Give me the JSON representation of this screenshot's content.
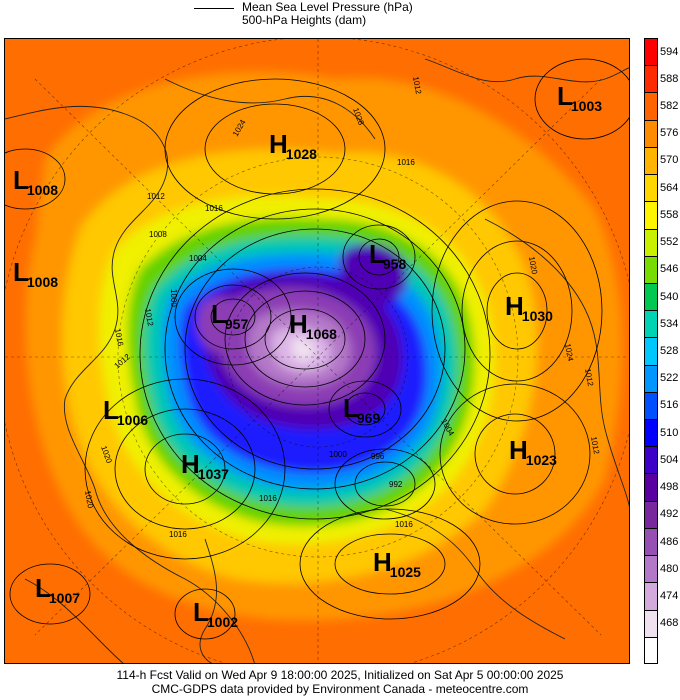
{
  "header": {
    "legend_line_label": "Mean Sea Level Pressure (hPa)",
    "legend_fill_label": "500-hPa Heights (dam)"
  },
  "pressure_systems": [
    {
      "type": "L",
      "value": "1003"
    },
    {
      "type": "H",
      "value": "1028"
    },
    {
      "type": "L",
      "value": "1008"
    },
    {
      "type": "L",
      "value": "1008"
    },
    {
      "type": "L",
      "value": "958"
    },
    {
      "type": "H",
      "value": "1030"
    },
    {
      "type": "L",
      "value": "957"
    },
    {
      "type": "H",
      "value": "1068"
    },
    {
      "type": "L",
      "value": "1006"
    },
    {
      "type": "L",
      "value": "969"
    },
    {
      "type": "H",
      "value": "1037"
    },
    {
      "type": "H",
      "value": "1023"
    },
    {
      "type": "H",
      "value": "1025"
    },
    {
      "type": "L",
      "value": "1007"
    },
    {
      "type": "L",
      "value": "1002"
    }
  ],
  "isobar_labels": [
    "1024",
    "1028",
    "1012",
    "1016",
    "1016",
    "1012",
    "1008",
    "1004",
    "1000",
    "1012",
    "1020",
    "1024",
    "1020",
    "1016",
    "1012",
    "1012",
    "1004",
    "1016",
    "1016",
    "1020",
    "1012",
    "1016",
    "1000",
    "996",
    "992"
  ],
  "colorbar": {
    "levels": [
      "594",
      "588",
      "582",
      "576",
      "570",
      "564",
      "558",
      "552",
      "546",
      "540",
      "534",
      "528",
      "522",
      "516",
      "510",
      "504",
      "498",
      "492",
      "486",
      "480",
      "474",
      "468"
    ],
    "colors": [
      "#ff0000",
      "#ff2a00",
      "#ff6400",
      "#ff8c00",
      "#ffb400",
      "#ffd700",
      "#fff500",
      "#c8f000",
      "#78dc00",
      "#00c850",
      "#00d2b4",
      "#00c8ff",
      "#0096ff",
      "#0050ff",
      "#0000ff",
      "#3c00c8",
      "#5a00a0",
      "#78289c",
      "#9650b4",
      "#b478c8",
      "#d2aadc",
      "#f0e1f0"
    ]
  },
  "footer": {
    "line1": "114-h Fcst Valid on Wed Apr  9 18:00:00 2025, Initialized on Sat Apr  5 00:00:00 2025",
    "line2": "CMC-GDPS data provided by Environment Canada - meteocentre.com"
  }
}
